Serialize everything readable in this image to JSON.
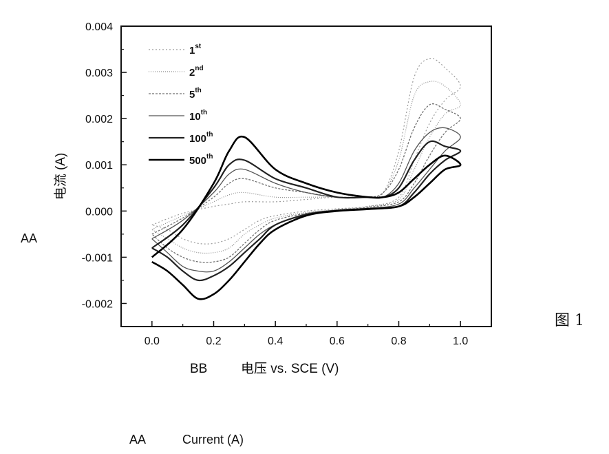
{
  "chart_data": {
    "type": "line",
    "title": "",
    "xlabel": "电压 vs. SCE (V)",
    "ylabel": "电流 (A)",
    "xlim": [
      -0.1,
      1.1
    ],
    "ylim": [
      -0.0025,
      0.004
    ],
    "x_ticks": [
      0.0,
      0.2,
      0.4,
      0.6,
      0.8,
      1.0
    ],
    "x_tick_labels": [
      "0.0",
      "0.2",
      "0.4",
      "0.6",
      "0.8",
      "1.0"
    ],
    "y_ticks": [
      -0.002,
      -0.001,
      0.0,
      0.001,
      0.002,
      0.003,
      0.004
    ],
    "y_tick_labels": [
      "-0.002",
      "-0.001",
      "0.000",
      "0.001",
      "0.002",
      "0.003",
      "0.004"
    ],
    "grid": false,
    "legend_position": "top-left",
    "series": [
      {
        "name": "1st",
        "base": "1",
        "sup": "st",
        "color": "#9a9a9a",
        "dash": "2,3",
        "width": 1.2,
        "x": [
          0.0,
          0.1,
          0.2,
          0.25,
          0.3,
          0.4,
          0.5,
          0.6,
          0.7,
          0.75,
          0.8,
          0.85,
          0.9,
          0.95,
          1.0,
          0.95,
          0.9,
          0.85,
          0.8,
          0.7,
          0.6,
          0.5,
          0.4,
          0.35,
          0.3,
          0.25,
          0.2,
          0.15,
          0.1,
          0.05,
          0.0
        ],
        "y": [
          -0.0003,
          -5e-05,
          0.0001,
          0.00015,
          0.0002,
          0.0002,
          0.00025,
          0.0003,
          0.0003,
          0.0004,
          0.0013,
          0.0029,
          0.0033,
          0.0031,
          0.0027,
          0.0024,
          0.0019,
          0.0011,
          0.0003,
          0.0001,
          5e-05,
          0.0,
          -0.0001,
          -0.0002,
          -0.0004,
          -0.0006,
          -0.0007,
          -0.0007,
          -0.0006,
          -0.0004,
          -0.0003
        ]
      },
      {
        "name": "2nd",
        "base": "2",
        "sup": "nd",
        "color": "#8a8a8a",
        "dash": "1,2",
        "width": 1.2,
        "x": [
          0.0,
          0.1,
          0.2,
          0.25,
          0.3,
          0.4,
          0.5,
          0.6,
          0.7,
          0.75,
          0.8,
          0.85,
          0.9,
          0.95,
          1.0,
          0.95,
          0.9,
          0.85,
          0.8,
          0.7,
          0.6,
          0.5,
          0.4,
          0.35,
          0.3,
          0.25,
          0.2,
          0.15,
          0.1,
          0.05,
          0.0
        ],
        "y": [
          -0.0004,
          -0.0001,
          0.0002,
          0.00035,
          0.0004,
          0.0003,
          0.0003,
          0.0003,
          0.0003,
          0.0004,
          0.0011,
          0.0025,
          0.0028,
          0.0027,
          0.0023,
          0.0021,
          0.0016,
          0.0009,
          0.00025,
          0.0001,
          3e-05,
          -3e-05,
          -0.00015,
          -0.0003,
          -0.0005,
          -0.0008,
          -0.0009,
          -0.0009,
          -0.0008,
          -0.0006,
          -0.0004
        ]
      },
      {
        "name": "5th",
        "base": "5",
        "sup": "th",
        "color": "#707070",
        "dash": "3,2",
        "width": 1.3,
        "x": [
          0.0,
          0.1,
          0.2,
          0.25,
          0.3,
          0.4,
          0.5,
          0.6,
          0.7,
          0.75,
          0.8,
          0.85,
          0.9,
          0.95,
          1.0,
          0.95,
          0.9,
          0.85,
          0.8,
          0.7,
          0.6,
          0.5,
          0.4,
          0.35,
          0.3,
          0.25,
          0.2,
          0.15,
          0.1,
          0.05,
          0.0
        ],
        "y": [
          -0.0005,
          -0.00015,
          0.0003,
          0.0006,
          0.0007,
          0.0005,
          0.0004,
          0.0003,
          0.0003,
          0.0004,
          0.0009,
          0.0018,
          0.0023,
          0.0022,
          0.002,
          0.0017,
          0.0012,
          0.0006,
          0.0002,
          8e-05,
          2e-05,
          -5e-05,
          -0.0002,
          -0.0004,
          -0.0007,
          -0.001,
          -0.0011,
          -0.0011,
          -0.001,
          -0.0008,
          -0.0005
        ]
      },
      {
        "name": "10th",
        "base": "10",
        "sup": "th",
        "color": "#555555",
        "dash": "",
        "width": 1.3,
        "x": [
          0.0,
          0.1,
          0.2,
          0.25,
          0.3,
          0.4,
          0.5,
          0.6,
          0.7,
          0.75,
          0.8,
          0.85,
          0.9,
          0.95,
          1.0,
          0.95,
          0.9,
          0.85,
          0.8,
          0.7,
          0.6,
          0.5,
          0.4,
          0.35,
          0.3,
          0.25,
          0.2,
          0.15,
          0.1,
          0.05,
          0.0
        ],
        "y": [
          -0.0006,
          -0.0002,
          0.0004,
          0.0008,
          0.0009,
          0.0006,
          0.0004,
          0.0003,
          0.0003,
          0.0003,
          0.0006,
          0.0013,
          0.0017,
          0.0018,
          0.0016,
          0.0013,
          0.0009,
          0.0005,
          0.00015,
          6e-05,
          2e-05,
          -6e-05,
          -0.0003,
          -0.0005,
          -0.0008,
          -0.0011,
          -0.0013,
          -0.0013,
          -0.0012,
          -0.0009,
          -0.0006
        ]
      },
      {
        "name": "100th",
        "base": "100",
        "sup": "th",
        "color": "#222222",
        "dash": "",
        "width": 2.2,
        "x": [
          0.0,
          0.1,
          0.2,
          0.25,
          0.3,
          0.4,
          0.5,
          0.6,
          0.7,
          0.75,
          0.8,
          0.85,
          0.9,
          0.95,
          1.0,
          0.95,
          0.9,
          0.85,
          0.8,
          0.7,
          0.6,
          0.5,
          0.4,
          0.35,
          0.3,
          0.25,
          0.2,
          0.15,
          0.1,
          0.05,
          0.0
        ],
        "y": [
          -0.0008,
          -0.0003,
          0.0005,
          0.001,
          0.0011,
          0.0007,
          0.0005,
          0.0003,
          0.0003,
          0.0003,
          0.0005,
          0.0011,
          0.0015,
          0.0014,
          0.0013,
          0.0011,
          0.0008,
          0.0004,
          0.0001,
          5e-05,
          1e-05,
          -8e-05,
          -0.0003,
          -0.0006,
          -0.0009,
          -0.0012,
          -0.0014,
          -0.0015,
          -0.0013,
          -0.001,
          -0.0008
        ]
      },
      {
        "name": "500th",
        "base": "500",
        "sup": "th",
        "color": "#000000",
        "dash": "",
        "width": 2.6,
        "x": [
          0.0,
          0.1,
          0.2,
          0.25,
          0.3,
          0.4,
          0.5,
          0.6,
          0.7,
          0.75,
          0.8,
          0.85,
          0.9,
          0.95,
          1.0,
          0.95,
          0.9,
          0.85,
          0.8,
          0.7,
          0.6,
          0.5,
          0.4,
          0.35,
          0.3,
          0.25,
          0.2,
          0.15,
          0.1,
          0.05,
          0.0
        ],
        "y": [
          -0.001,
          -0.0004,
          0.0006,
          0.0013,
          0.0016,
          0.0009,
          0.0006,
          0.0004,
          0.0003,
          0.0003,
          0.0004,
          0.0007,
          0.001,
          0.0012,
          0.001,
          0.0009,
          0.0006,
          0.0003,
          0.0001,
          4e-05,
          0.0,
          -0.0001,
          -0.0004,
          -0.0007,
          -0.0011,
          -0.0015,
          -0.0018,
          -0.0019,
          -0.0016,
          -0.0013,
          -0.0011
        ]
      }
    ]
  },
  "labels": {
    "side_label": "AA",
    "x_prefix": "BB",
    "figure_label": "图 1",
    "caption_key": "AA",
    "caption_text": "Current (A)"
  }
}
